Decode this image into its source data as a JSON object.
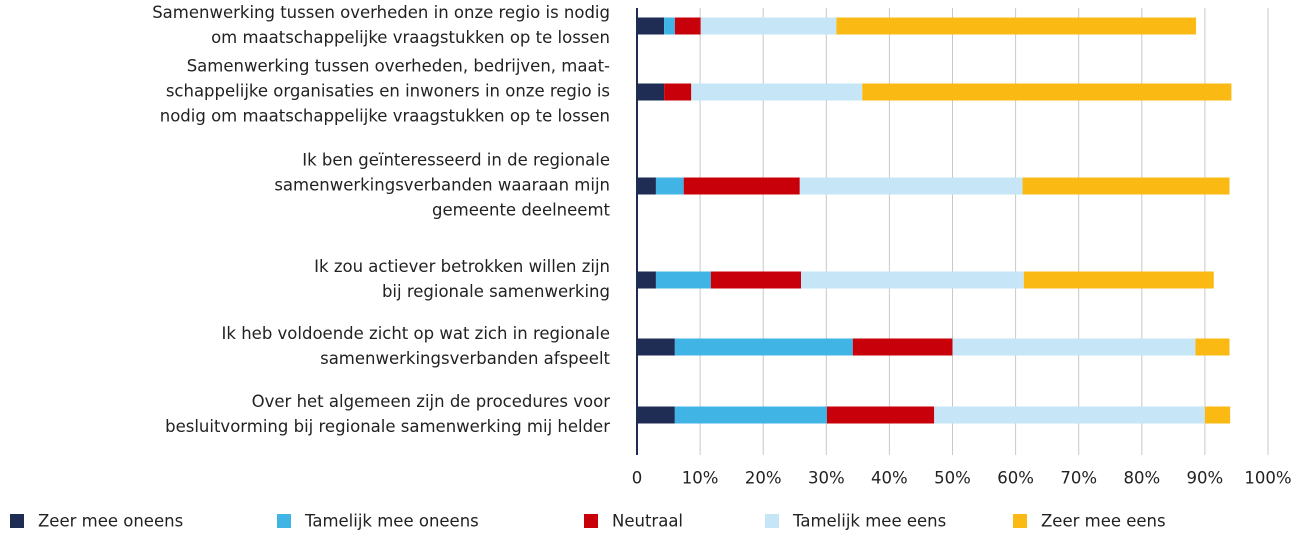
{
  "chart_data": {
    "type": "stacked_bar_horizontal",
    "categories": [
      [
        "Samenwerking tussen overheden in onze regio is nodig",
        "om maatschappelijke vraagstukken op te lossen"
      ],
      [
        "Samenwerking tussen overheden, bedrijven, maat-",
        "schappelijke organisaties en inwoners in onze regio is",
        "nodig om maatschappelijke vraagstukken op te lossen"
      ],
      [
        "Ik ben geïnteresseerd in de regionale",
        "samenwerkingsverbanden waaraan mijn",
        "gemeente deelneemt"
      ],
      [
        "Ik zou actiever betrokken willen zijn",
        "bij regionale samenwerking"
      ],
      [
        "Ik heb voldoende zicht op wat zich in regionale",
        "samenwerkingsverbanden afspeelt"
      ],
      [
        "Over het algemeen zijn de procedures voor",
        "besluitvorming bij regionale samenwerking mij helder"
      ]
    ],
    "series": [
      {
        "name": "Zeer mee oneens",
        "color": "#1f2d54",
        "values": [
          4.3,
          4.3,
          3,
          3,
          6,
          6
        ]
      },
      {
        "name": "Tamelijk mee oneens",
        "color": "#41b4e6",
        "values": [
          1.7,
          0,
          4.4,
          8.7,
          28.2,
          24.1
        ]
      },
      {
        "name": "Neutraal",
        "color": "#c8000a",
        "values": [
          4.1,
          4.3,
          18.4,
          14.3,
          15.8,
          17
        ]
      },
      {
        "name": "Tamelijk mee eens",
        "color": "#c6e6f7",
        "values": [
          21.5,
          27.1,
          35.3,
          35.3,
          38.5,
          42.9
        ]
      },
      {
        "name": "Zeer mee eens",
        "color": "#fbb914",
        "values": [
          57,
          58.5,
          32.8,
          30.1,
          5.4,
          4
        ]
      }
    ],
    "xlim": [
      0,
      100
    ],
    "xticks": [
      0,
      {
        "value": 10,
        "label": "10%"
      },
      {
        "value": 20,
        "label": "20%"
      },
      {
        "value": 30,
        "label": "30%"
      },
      {
        "value": 40,
        "label": "40%"
      },
      {
        "value": 50,
        "label": "50%"
      },
      {
        "value": 60,
        "label": "60%"
      },
      {
        "value": 70,
        "label": "70%"
      },
      {
        "value": 80,
        "label": "80%"
      },
      {
        "value": 90,
        "label": "90%"
      },
      {
        "value": 100,
        "label": "100%"
      }
    ],
    "grid": true,
    "legend": "bottom"
  }
}
